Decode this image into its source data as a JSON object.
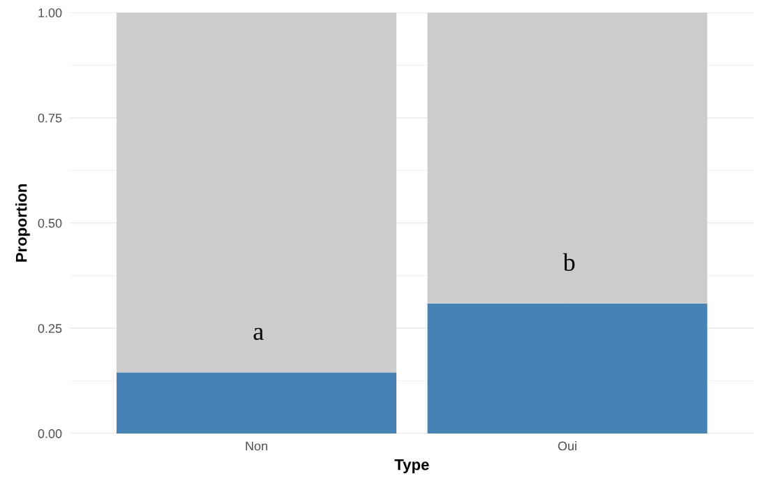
{
  "chart_data": {
    "type": "bar",
    "xlabel": "Type",
    "ylabel": "Proportion",
    "categories": [
      "Non",
      "Oui"
    ],
    "series": [
      {
        "color": "#4682b4",
        "values": [
          0.145,
          0.309
        ]
      },
      {
        "color": "#cccccc",
        "values": [
          0.855,
          0.691
        ]
      }
    ],
    "stacked": true,
    "ylim": [
      0,
      1
    ],
    "yticks": [
      {
        "value": 0,
        "label": "0.00"
      },
      {
        "value": 0.25,
        "label": "0.25"
      },
      {
        "value": 0.5,
        "label": "0.50"
      },
      {
        "value": 0.75,
        "label": "0.75"
      },
      {
        "value": 1,
        "label": "1.00"
      }
    ],
    "grid": true,
    "legend": false,
    "annotations": [
      "a",
      "b"
    ]
  }
}
